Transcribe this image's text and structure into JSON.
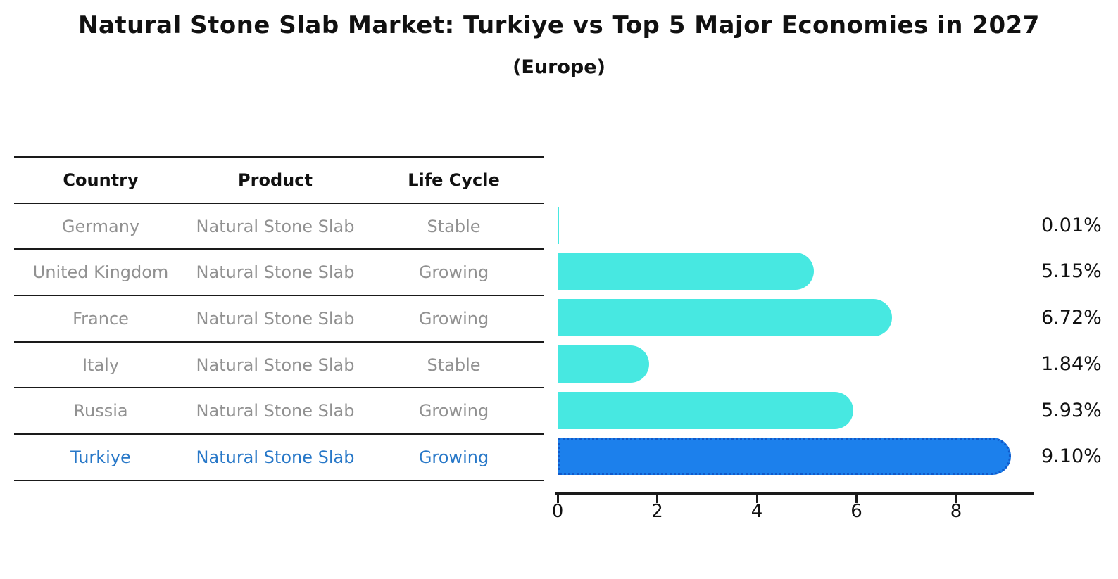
{
  "title": "Natural Stone Slab Market: Turkiye vs Top 5 Major Economies in 2027",
  "subtitle": "(Europe)",
  "table": {
    "headers": [
      "Country",
      "Product",
      "Life Cycle"
    ],
    "rows": [
      {
        "country": "Germany",
        "product": "Natural Stone Slab",
        "life_cycle": "Stable",
        "highlight": false
      },
      {
        "country": "United Kingdom",
        "product": "Natural Stone Slab",
        "life_cycle": "Growing",
        "highlight": false
      },
      {
        "country": "France",
        "product": "Natural Stone Slab",
        "life_cycle": "Growing",
        "highlight": false
      },
      {
        "country": "Italy",
        "product": "Natural Stone Slab",
        "life_cycle": "Stable",
        "highlight": false
      },
      {
        "country": "Russia",
        "product": "Natural Stone Slab",
        "life_cycle": "Growing",
        "highlight": false
      },
      {
        "country": "Turkiye",
        "product": "Natural Stone Slab",
        "life_cycle": "Growing",
        "highlight": true
      }
    ]
  },
  "chart_data": {
    "type": "bar",
    "orientation": "horizontal",
    "title": "Natural Stone Slab Market: Turkiye vs Top 5 Major Economies in 2027",
    "subtitle": "(Europe)",
    "categories": [
      "Germany",
      "United Kingdom",
      "France",
      "Italy",
      "Russia",
      "Turkiye"
    ],
    "values": [
      0.01,
      5.15,
      6.72,
      1.84,
      5.93,
      9.1
    ],
    "value_labels": [
      "0.01%",
      "5.15%",
      "6.72%",
      "1.84%",
      "5.93%",
      "9.10%"
    ],
    "xticks": [
      0,
      2,
      4,
      6,
      8
    ],
    "xlim": [
      0,
      9.55
    ],
    "grid": false,
    "legend": "none",
    "highlight_index": 5,
    "bar_color": "#47E8E1",
    "highlight_bar_color": "#1C80EC",
    "highlight_border_color": "#1159C9",
    "highlight_text_color": "#2878C8"
  }
}
